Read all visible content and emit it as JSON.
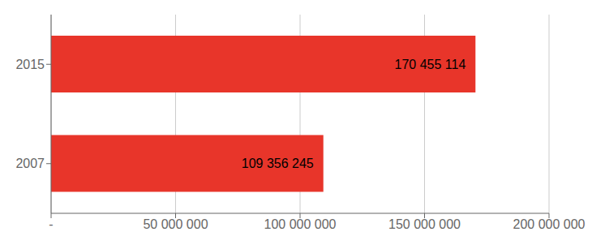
{
  "chart_data": {
    "type": "bar",
    "orientation": "horizontal",
    "categories": [
      "2007",
      "2015"
    ],
    "values": [
      109356245,
      170455114
    ],
    "value_labels": [
      "109 356 245",
      "170 455 114"
    ],
    "data_labels": true,
    "color": "#e8352a",
    "xlim": [
      0,
      200000000
    ],
    "xticks": [
      {
        "value": 0,
        "label": "-"
      },
      {
        "value": 50000000,
        "label": "50 000 000"
      },
      {
        "value": 100000000,
        "label": "100 000 000"
      },
      {
        "value": 150000000,
        "label": "150 000 000"
      },
      {
        "value": 200000000,
        "label": "200 000 000"
      }
    ],
    "grid": true
  }
}
